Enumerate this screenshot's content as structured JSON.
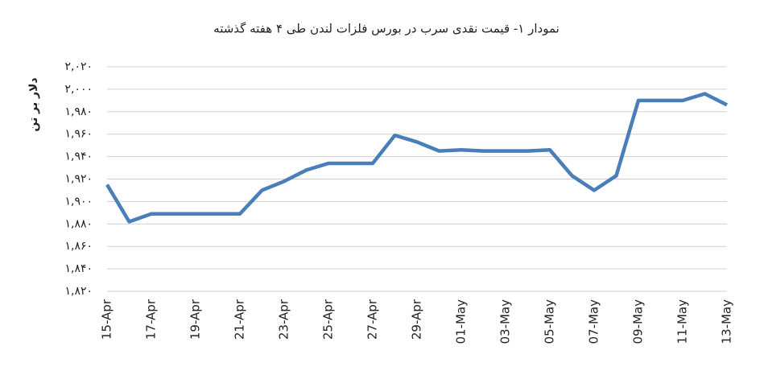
{
  "chart_data": {
    "type": "line",
    "title": "نمودار ۱- قیمت نقدی سرب  در بورس فلزات لندن طی ۴ هفته گذشته",
    "y_label": "دلار بر تن",
    "categories": [
      "15-Apr",
      null,
      "17-Apr",
      null,
      "19-Apr",
      null,
      "21-Apr",
      null,
      "23-Apr",
      null,
      "25-Apr",
      null,
      "27-Apr",
      null,
      "29-Apr",
      null,
      "01-May",
      null,
      "03-May",
      null,
      "05-May",
      null,
      "07-May",
      null,
      "09-May",
      null,
      "11-May",
      null,
      "13-May"
    ],
    "series": [
      {
        "name": "lead",
        "color": "#4a7ebb",
        "values": [
          1915,
          1882,
          1889,
          1889,
          1889,
          1889,
          1889,
          1910,
          1918,
          1928,
          1934,
          1934,
          1934,
          1959,
          1953,
          1945,
          1946,
          1945,
          1945,
          1945,
          1946,
          1923,
          1910,
          1923,
          1990,
          1990,
          1990,
          1996,
          1986
        ]
      }
    ],
    "ylim": [
      1820,
      2020
    ],
    "yticks": [
      {
        "value": 1820,
        "label": "۱,۸۲۰"
      },
      {
        "value": 1840,
        "label": "۱,۸۴۰"
      },
      {
        "value": 1860,
        "label": "۱,۸۶۰"
      },
      {
        "value": 1880,
        "label": "۱,۸۸۰"
      },
      {
        "value": 1900,
        "label": "۱,۹۰۰"
      },
      {
        "value": 1920,
        "label": "۱,۹۲۰"
      },
      {
        "value": 1940,
        "label": "۱,۹۴۰"
      },
      {
        "value": 1960,
        "label": "۱,۹۶۰"
      },
      {
        "value": 1980,
        "label": "۱,۹۸۰"
      },
      {
        "value": 2000,
        "label": "۲,۰۰۰"
      },
      {
        "value": 2020,
        "label": "۲,۰۲۰"
      }
    ],
    "grid": true
  }
}
